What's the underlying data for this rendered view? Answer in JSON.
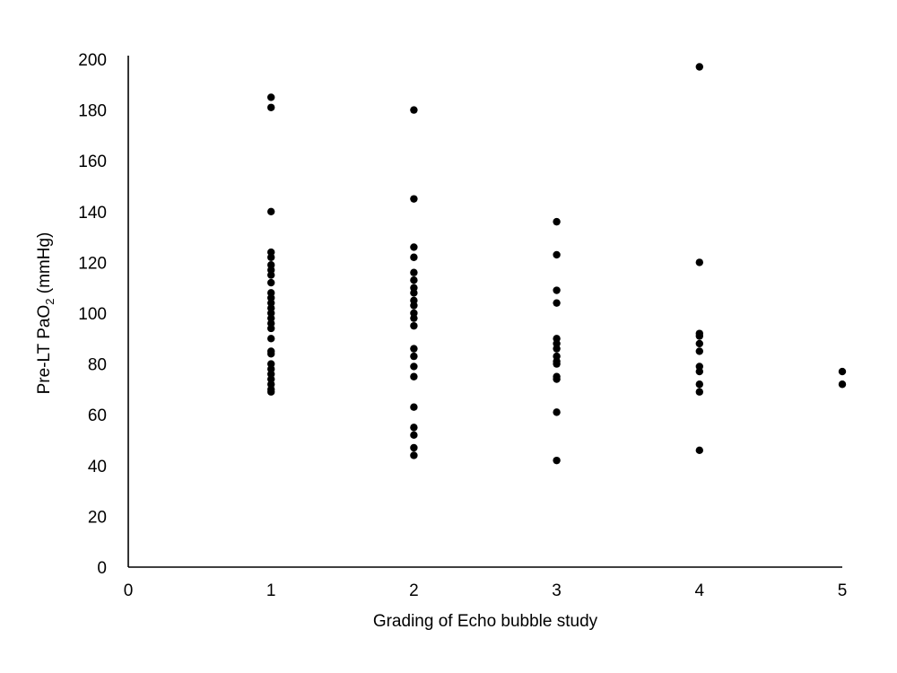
{
  "chart_data": {
    "type": "scatter",
    "xlabel": "Grading of Echo bubble study",
    "ylabel": {
      "prefix": "Pre-LT PaO",
      "subscript": "2",
      "suffix": " (mmHg)"
    },
    "xlim": [
      0,
      5
    ],
    "ylim": [
      0,
      200
    ],
    "x_ticks": [
      0,
      1,
      2,
      3,
      4,
      5
    ],
    "y_ticks": [
      0,
      20,
      40,
      60,
      80,
      100,
      120,
      140,
      160,
      180,
      200
    ],
    "grid": false,
    "legend": "none",
    "point_color": "#000000",
    "series": [
      {
        "points": [
          [
            1,
            185
          ],
          [
            1,
            181
          ],
          [
            1,
            140
          ],
          [
            1,
            124
          ],
          [
            1,
            122
          ],
          [
            1,
            119
          ],
          [
            1,
            117
          ],
          [
            1,
            115
          ],
          [
            1,
            112
          ],
          [
            1,
            108
          ],
          [
            1,
            106
          ],
          [
            1,
            104
          ],
          [
            1,
            102
          ],
          [
            1,
            100
          ],
          [
            1,
            98
          ],
          [
            1,
            96
          ],
          [
            1,
            94
          ],
          [
            1,
            90
          ],
          [
            1,
            85
          ],
          [
            1,
            84
          ],
          [
            1,
            80
          ],
          [
            1,
            78
          ],
          [
            1,
            76
          ],
          [
            1,
            74
          ],
          [
            1,
            72
          ],
          [
            1,
            70
          ],
          [
            1,
            69
          ],
          [
            2,
            180
          ],
          [
            2,
            145
          ],
          [
            2,
            126
          ],
          [
            2,
            122
          ],
          [
            2,
            116
          ],
          [
            2,
            113
          ],
          [
            2,
            110
          ],
          [
            2,
            108
          ],
          [
            2,
            105
          ],
          [
            2,
            103
          ],
          [
            2,
            100
          ],
          [
            2,
            98
          ],
          [
            2,
            95
          ],
          [
            2,
            86
          ],
          [
            2,
            83
          ],
          [
            2,
            79
          ],
          [
            2,
            75
          ],
          [
            2,
            63
          ],
          [
            2,
            55
          ],
          [
            2,
            52
          ],
          [
            2,
            47
          ],
          [
            2,
            44
          ],
          [
            3,
            136
          ],
          [
            3,
            123
          ],
          [
            3,
            109
          ],
          [
            3,
            104
          ],
          [
            3,
            90
          ],
          [
            3,
            88
          ],
          [
            3,
            86
          ],
          [
            3,
            83
          ],
          [
            3,
            81
          ],
          [
            3,
            80
          ],
          [
            3,
            75
          ],
          [
            3,
            74
          ],
          [
            3,
            61
          ],
          [
            3,
            42
          ],
          [
            4,
            197
          ],
          [
            4,
            120
          ],
          [
            4,
            92
          ],
          [
            4,
            91
          ],
          [
            4,
            88
          ],
          [
            4,
            85
          ],
          [
            4,
            79
          ],
          [
            4,
            77
          ],
          [
            4,
            72
          ],
          [
            4,
            69
          ],
          [
            4,
            46
          ],
          [
            5,
            77
          ],
          [
            5,
            72
          ]
        ]
      }
    ]
  }
}
